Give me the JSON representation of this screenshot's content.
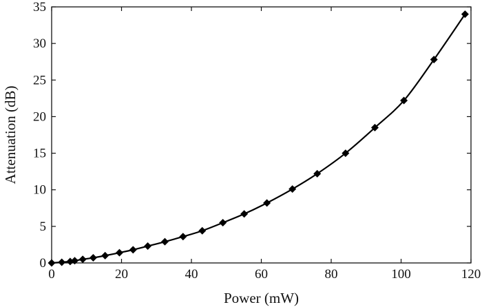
{
  "chart_data": {
    "type": "line",
    "title": "",
    "xlabel": "Power (mW)",
    "ylabel": "Attenuation (dB)",
    "xlim": [
      0,
      120
    ],
    "ylim": [
      0,
      35
    ],
    "xticks": [
      0,
      20,
      40,
      60,
      80,
      100,
      120
    ],
    "yticks": [
      0,
      5,
      10,
      15,
      20,
      25,
      30,
      35
    ],
    "grid": false,
    "legend": "none",
    "colors": {
      "line": "#000000",
      "marker": "#000000"
    },
    "marker": "diamond",
    "series": [
      {
        "x": [
          0,
          2.9,
          5.3,
          6.6,
          8.9,
          11.9,
          15.3,
          19.4,
          23.3,
          27.5,
          32.4,
          37.6,
          43.1,
          49.0,
          55.1,
          61.6,
          68.9,
          76.0,
          84.1,
          92.5,
          100.8,
          109.4,
          118.3
        ],
        "y": [
          0.0,
          0.1,
          0.2,
          0.3,
          0.5,
          0.7,
          1.0,
          1.4,
          1.8,
          2.3,
          2.9,
          3.6,
          4.4,
          5.5,
          6.7,
          8.2,
          10.1,
          12.2,
          15.0,
          18.5,
          22.2,
          27.8,
          34.0
        ]
      }
    ]
  }
}
